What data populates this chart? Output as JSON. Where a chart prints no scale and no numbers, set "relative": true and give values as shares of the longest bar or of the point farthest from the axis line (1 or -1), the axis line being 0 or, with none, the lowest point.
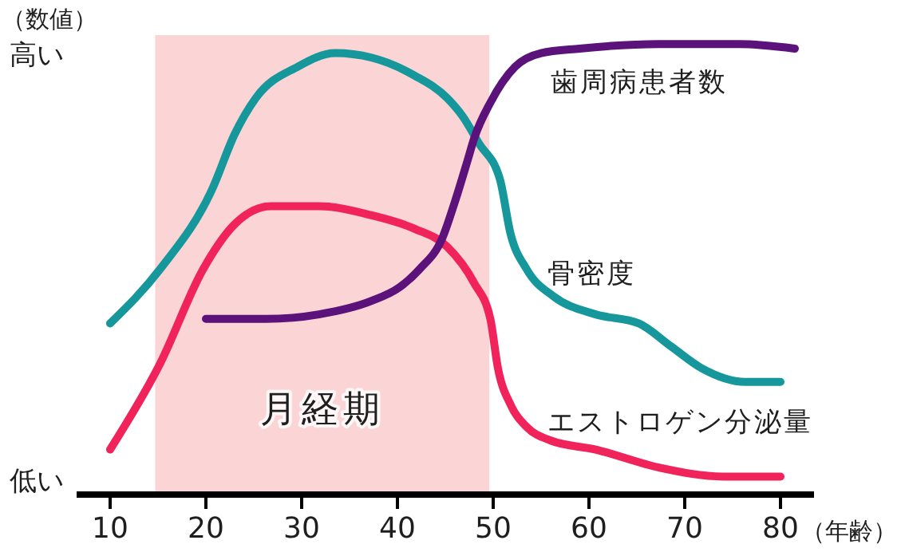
{
  "chart_data": {
    "type": "line",
    "relative": true,
    "xlabel": "（年齢）",
    "ylabel": "（数値）",
    "annotations": [
      "高い",
      "低い"
    ],
    "xlim": [
      6.5,
      83.5
    ],
    "xticks": [
      10,
      20,
      30,
      40,
      50,
      60,
      70,
      80
    ],
    "bands": [
      {
        "axis": "x",
        "from": 14.7,
        "to": 49.6,
        "label": "月経期",
        "color": "#fbd5d5"
      }
    ],
    "series": [
      {
        "name": "骨密度",
        "color": "#15979b",
        "x": [
          10,
          15.2,
          20.7,
          23,
          25.2,
          29.6,
          33.5,
          37.3,
          41.8,
          45.2,
          46.8,
          48.5,
          50.7,
          51.8,
          53.5,
          56.3,
          60.7,
          65.2,
          68.5,
          71.8,
          76.3,
          80
        ],
        "values": [
          0.38,
          0.5,
          0.68,
          0.8,
          0.88,
          0.95,
          0.98,
          0.97,
          0.93,
          0.88,
          0.84,
          0.78,
          0.7,
          0.58,
          0.5,
          0.44,
          0.4,
          0.38,
          0.33,
          0.28,
          0.25,
          0.25
        ]
      },
      {
        "name": "エストロゲン分泌量",
        "color": "#f0245a",
        "x": [
          10,
          15.2,
          19.7,
          23,
          26.8,
          31.8,
          37.3,
          41.8,
          45.2,
          48,
          49.7,
          50.5,
          51.8,
          53.5,
          56,
          60.7,
          67.3,
          74,
          80
        ],
        "values": [
          0.1,
          0.29,
          0.5,
          0.6,
          0.64,
          0.64,
          0.62,
          0.59,
          0.55,
          0.47,
          0.39,
          0.28,
          0.2,
          0.15,
          0.12,
          0.1,
          0.06,
          0.04,
          0.04
        ]
      },
      {
        "name": "歯周病患者数",
        "color": "#5b127a",
        "x": [
          20,
          26.3,
          31.8,
          37.3,
          40.2,
          42.3,
          44.7,
          46,
          47.3,
          48,
          49.7,
          52.3,
          55,
          59,
          67.3,
          75.7,
          81.5
        ],
        "values": [
          0.39,
          0.39,
          0.4,
          0.43,
          0.46,
          0.5,
          0.57,
          0.65,
          0.74,
          0.79,
          0.87,
          0.95,
          0.98,
          0.99,
          1,
          1,
          0.99
        ]
      }
    ]
  }
}
